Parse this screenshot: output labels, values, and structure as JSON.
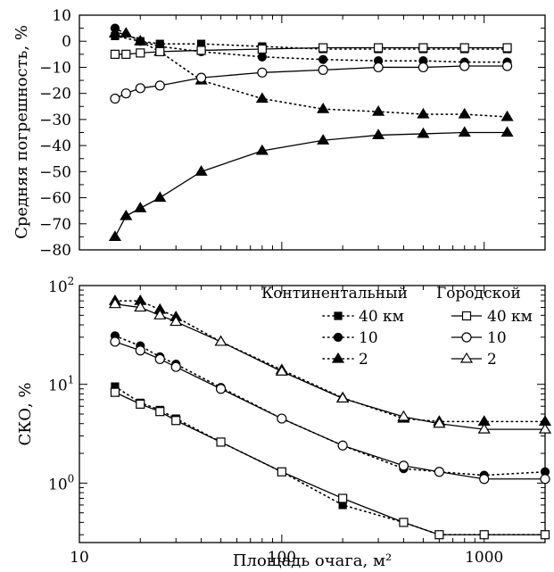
{
  "chart_data": [
    {
      "type": "line",
      "xlabel": "",
      "ylabel": "Средняя погрешность, %",
      "xscale": "log",
      "xlim": [
        10,
        2000
      ],
      "ylim": [
        -80,
        10
      ],
      "yticks": [
        10,
        0,
        -10,
        -20,
        -30,
        -40,
        -50,
        -60,
        -70,
        -80
      ],
      "ytick_labels": [
        "10",
        "0",
        "−10",
        "−20",
        "−30",
        "−40",
        "−50",
        "−60",
        "−70",
        "−80"
      ],
      "grid": false,
      "series": [
        {
          "group": "continental",
          "style": "dotted",
          "marker": "square-filled",
          "x": [
            15,
            20,
            25,
            40,
            80,
            160,
            300,
            500,
            800,
            1300
          ],
          "y": [
            2,
            0,
            -1,
            -1,
            -2,
            -3,
            -3,
            -3,
            -3,
            -3
          ]
        },
        {
          "group": "continental",
          "style": "dotted",
          "marker": "circle-filled",
          "x": [
            15,
            20,
            25,
            40,
            80,
            160,
            300,
            500,
            800,
            1300
          ],
          "y": [
            5,
            0,
            -2,
            -4,
            -6,
            -7,
            -7.5,
            -7.5,
            -8,
            -8
          ]
        },
        {
          "group": "continental",
          "style": "dotted",
          "marker": "triangle-filled",
          "x": [
            15,
            17,
            20,
            25,
            40,
            80,
            160,
            300,
            500,
            800,
            1300
          ],
          "y": [
            3,
            3,
            0,
            -4,
            -15,
            -22,
            -26,
            -27,
            -28,
            -28,
            -29
          ]
        },
        {
          "group": "urban",
          "style": "solid",
          "marker": "square-open",
          "x": [
            15,
            17,
            20,
            25,
            40,
            80,
            160,
            300,
            500,
            800,
            1300
          ],
          "y": [
            -5,
            -5,
            -4.5,
            -4,
            -3.5,
            -3,
            -2.5,
            -2.5,
            -2.5,
            -2.5,
            -2.5
          ]
        },
        {
          "group": "urban",
          "style": "solid",
          "marker": "circle-open",
          "x": [
            15,
            17,
            20,
            25,
            40,
            80,
            160,
            300,
            500,
            800,
            1300
          ],
          "y": [
            -22,
            -20,
            -18,
            -17,
            -14,
            -12,
            -11,
            -10,
            -10,
            -9.5,
            -9.5
          ]
        },
        {
          "group": "urban",
          "style": "solid",
          "marker": "triangle-filled",
          "x": [
            15,
            17,
            20,
            25,
            40,
            80,
            160,
            300,
            500,
            800,
            1300
          ],
          "y": [
            -75,
            -67,
            -64,
            -60,
            -50,
            -42,
            -38,
            -36,
            -35.5,
            -35,
            -35
          ]
        }
      ]
    },
    {
      "type": "line",
      "xlabel": "Площадь очага, м²",
      "ylabel": "СКО, %",
      "xscale": "log",
      "yscale": "log",
      "xlim": [
        10,
        2000
      ],
      "ylim": [
        0.25,
        100
      ],
      "xticks": [
        10,
        100,
        1000
      ],
      "xtick_labels": [
        "10",
        "100",
        "1000"
      ],
      "yticks": [
        1,
        10,
        100
      ],
      "ytick_labels": [
        [
          "10",
          "0"
        ],
        [
          "10",
          "1"
        ],
        [
          "10",
          "2"
        ]
      ],
      "grid": false,
      "legend": {
        "placement": "top-right",
        "groups": [
          {
            "title": "Континентальный",
            "entries": [
              "40 км",
              "10",
              "2"
            ]
          },
          {
            "title": "Городской",
            "entries": [
              "40 км",
              "10",
              "2"
            ]
          }
        ]
      },
      "series": [
        {
          "name": "40 км",
          "group": "continental",
          "style": "dotted",
          "marker": "square-filled",
          "x": [
            15,
            20,
            25,
            30,
            50,
            100,
            200,
            400,
            600,
            1000,
            2000
          ],
          "y": [
            9.5,
            6.5,
            5.5,
            4.5,
            2.6,
            1.3,
            0.6,
            0.4,
            0.3,
            0.3,
            0.3
          ]
        },
        {
          "name": "10",
          "group": "continental",
          "style": "dotted",
          "marker": "circle-filled",
          "x": [
            15,
            20,
            25,
            30,
            50,
            100,
            200,
            400,
            600,
            1000,
            2000
          ],
          "y": [
            31,
            24.5,
            19,
            16,
            9.3,
            4.5,
            2.4,
            1.4,
            1.3,
            1.2,
            1.3
          ]
        },
        {
          "name": "2",
          "group": "continental",
          "style": "dotted",
          "marker": "triangle-filled",
          "x": [
            15,
            20,
            25,
            30,
            50,
            100,
            200,
            400,
            600,
            1000,
            2000
          ],
          "y": [
            70,
            70,
            57,
            48,
            27,
            14,
            7.3,
            4.5,
            4.2,
            4.2,
            4.2
          ]
        },
        {
          "name": "40 км",
          "group": "urban",
          "style": "solid",
          "marker": "square-open",
          "x": [
            15,
            20,
            25,
            30,
            50,
            100,
            200,
            400,
            600,
            1000,
            2000
          ],
          "y": [
            8.3,
            6.3,
            5.3,
            4.3,
            2.6,
            1.3,
            0.7,
            0.4,
            0.3,
            0.3,
            0.3
          ]
        },
        {
          "name": "10",
          "group": "urban",
          "style": "solid",
          "marker": "circle-open",
          "x": [
            15,
            20,
            25,
            30,
            50,
            100,
            200,
            400,
            600,
            1000,
            2000
          ],
          "y": [
            27,
            22,
            18,
            15,
            9,
            4.5,
            2.4,
            1.5,
            1.3,
            1.1,
            1.1
          ]
        },
        {
          "name": "2",
          "group": "urban",
          "style": "solid",
          "marker": "triangle-open",
          "x": [
            15,
            20,
            25,
            30,
            50,
            100,
            200,
            400,
            600,
            1000,
            2000
          ],
          "y": [
            65,
            60,
            50,
            43,
            27,
            13.5,
            7.2,
            4.7,
            4,
            3.5,
            3.5
          ]
        }
      ]
    }
  ]
}
